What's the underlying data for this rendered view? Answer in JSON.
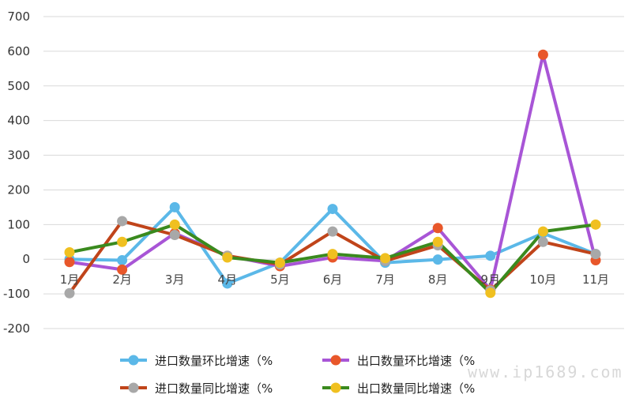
{
  "chart_data": {
    "type": "line",
    "categories": [
      "1月",
      "2月",
      "3月",
      "4月",
      "5月",
      "6月",
      "7月",
      "8月",
      "9月",
      "10月",
      "11月"
    ],
    "ylim": [
      -200,
      700
    ],
    "yticks": [
      -200,
      -100,
      0,
      100,
      200,
      300,
      400,
      500,
      600,
      700
    ],
    "grid": true,
    "legend_position": "bottom",
    "series": [
      {
        "name": "进口数量环比增速（%",
        "line_color": "#5bb8e8",
        "marker_color": "#5bb8e8",
        "values": [
          0,
          -3,
          150,
          -70,
          -10,
          145,
          -10,
          -1,
          10,
          75,
          15
        ]
      },
      {
        "name": "出口数量环比增速（%",
        "line_color": "#a855d6",
        "marker_color": "#e8572a",
        "values": [
          -8,
          -30,
          75,
          10,
          -20,
          5,
          -5,
          90,
          -88,
          590,
          -3
        ]
      },
      {
        "name": "进口数量同比增速（%",
        "line_color": "#c0441a",
        "marker_color": "#a8a8a8",
        "values": [
          -98,
          110,
          70,
          10,
          -15,
          80,
          -5,
          40,
          -90,
          50,
          15
        ]
      },
      {
        "name": "出口数量同比增速（%",
        "line_color": "#3a8a1e",
        "marker_color": "#f0c020",
        "values": [
          20,
          50,
          100,
          5,
          -10,
          15,
          3,
          50,
          -97,
          80,
          100
        ]
      }
    ]
  },
  "watermark": "www.ip1689.com"
}
